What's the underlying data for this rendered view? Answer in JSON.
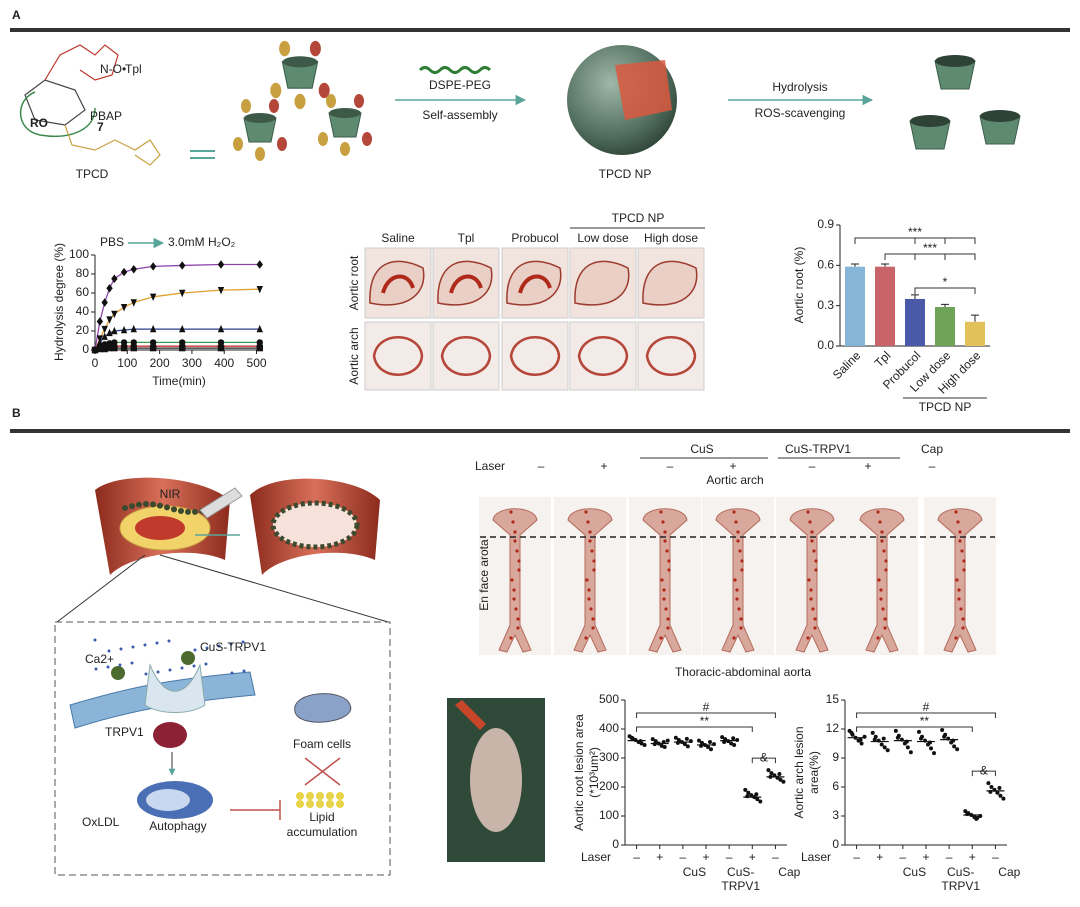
{
  "panel_a": {
    "label": "A",
    "scheme": {
      "tpl": "Tpl",
      "oxyl": "N-O•",
      "pbap": "PBAP",
      "ro": "RO",
      "n": "7",
      "tpcd": "TPCD",
      "reagent": "DSPE-PEG",
      "step1": "Self-assembly",
      "np": "TPCD NP",
      "step2a": "Hydrolysis",
      "step2b": "ROS-scavenging"
    },
    "histology": {
      "columns": [
        "Saline",
        "Tpl",
        "Probucol",
        "Low dose",
        "High dose"
      ],
      "group": "TPCD NP",
      "rows": [
        "Aortic root",
        "Aortic arch"
      ]
    }
  },
  "panel_b": {
    "label": "B",
    "scheme": {
      "nir": "NIR",
      "ca": "Ca2+",
      "cus": "CuS-TRPV1",
      "trpv1": "TRPV1",
      "oxldl": "OxLDL",
      "autophagy": "Autophagy",
      "foam": "Foam cells",
      "lipid": [
        "Lipid",
        "accumulation"
      ]
    },
    "aorta": {
      "laser_label": "Laser",
      "laser": [
        "–",
        "+",
        "–",
        "+",
        "–",
        "+",
        "–"
      ],
      "groups": [
        "CuS",
        "CuS-TRPV1",
        "Cap"
      ],
      "top_label": "Aortic arch",
      "side_label": "En face arota",
      "bottom_label": "Thoracic-abdominal aorta"
    }
  },
  "chart_data": [
    {
      "type": "line",
      "annotation": "PBS",
      "annotation_2": "3.0mM H₂O₂",
      "xlabel": "Time(min)",
      "ylabel": "Hydrolysis degree (%)",
      "x": [
        0,
        15,
        30,
        45,
        60,
        90,
        120,
        180,
        270,
        390,
        510
      ],
      "xlim": [
        0,
        520
      ],
      "xticks": [
        0,
        100,
        200,
        300,
        400,
        500
      ],
      "ylim": [
        0,
        100
      ],
      "yticks": [
        0,
        20,
        40,
        60,
        80,
        100
      ],
      "series": [
        {
          "color": "#8e44ad",
          "marker": "diamond",
          "values": [
            0,
            30,
            50,
            65,
            75,
            82,
            85,
            88,
            89,
            90,
            90
          ]
        },
        {
          "color": "#e0a030",
          "marker": "tri-down",
          "values": [
            0,
            12,
            22,
            32,
            38,
            45,
            50,
            56,
            60,
            63,
            64
          ]
        },
        {
          "color": "#2c3e8f",
          "marker": "tri-up",
          "values": [
            0,
            8,
            14,
            18,
            20,
            21,
            22,
            22,
            22,
            22,
            22
          ]
        },
        {
          "color": "#3c9a50",
          "marker": "circle",
          "values": [
            0,
            4,
            6,
            7,
            8,
            8,
            8,
            8,
            8,
            8,
            8
          ]
        },
        {
          "color": "#d03030",
          "marker": "circle",
          "values": [
            0,
            2,
            3,
            4,
            4,
            4,
            4,
            4,
            4,
            4,
            4
          ]
        },
        {
          "color": "#222222",
          "marker": "square",
          "values": [
            0,
            1,
            1,
            2,
            2,
            2,
            2,
            2,
            2,
            2,
            2
          ]
        }
      ]
    },
    {
      "type": "bar",
      "ylabel": "Aortic root (%)",
      "categories": [
        "Saline",
        "Tpl",
        "Probucol",
        "Low dose",
        "High dose"
      ],
      "values": [
        0.59,
        0.59,
        0.35,
        0.29,
        0.18
      ],
      "errors": [
        0.02,
        0.02,
        0.03,
        0.02,
        0.05
      ],
      "colors": [
        "#86b5d8",
        "#c9646b",
        "#4a5aa8",
        "#6fa356",
        "#e2c15a"
      ],
      "ylim": [
        0,
        0.9
      ],
      "yticks": [
        {
          "value": 0,
          "label": "0.0"
        },
        0.3,
        0.6,
        0.9
      ],
      "group_label": "TPCD NP",
      "significance": [
        "***",
        "***",
        "*"
      ]
    },
    {
      "type": "dot",
      "ylabel": [
        "Aortic root lesion area",
        "(*10³um²)"
      ],
      "laser_label": "Laser",
      "categories": [
        "–",
        "+",
        "–",
        "+",
        "–",
        "+",
        "–"
      ],
      "groups": [
        [
          "CuS"
        ],
        [
          "CuS-",
          "TRPV1"
        ],
        [
          "Cap"
        ]
      ],
      "values": [
        [
          375,
          368,
          362,
          355,
          350,
          345,
          370,
          358
        ],
        [
          365,
          358,
          350,
          342,
          338,
          360,
          348,
          355
        ],
        [
          370,
          362,
          355,
          348,
          340,
          358,
          352,
          366
        ],
        [
          360,
          352,
          345,
          338,
          330,
          348,
          342,
          355
        ],
        [
          372,
          365,
          358,
          350,
          345,
          362,
          355,
          368
        ],
        [
          190,
          180,
          172,
          165,
          158,
          150,
          168,
          175
        ],
        [
          258,
          248,
          240,
          232,
          225,
          218,
          235,
          245
        ]
      ],
      "means": [
        360,
        350,
        355,
        345,
        360,
        165,
        235
      ],
      "ylim": [
        0,
        500
      ],
      "yticks": [
        0,
        100,
        200,
        300,
        400,
        500
      ],
      "significance": [
        "#",
        "**",
        "&"
      ]
    },
    {
      "type": "dot",
      "ylabel": [
        "Aortic arch lesion",
        "area(%)"
      ],
      "laser_label": "Laser",
      "categories": [
        "–",
        "+",
        "–",
        "+",
        "–",
        "+",
        "–"
      ],
      "groups": [
        [
          "CuS"
        ],
        [
          "CuS-",
          "TRPV1"
        ],
        [
          "Cap"
        ]
      ],
      "values": [
        [
          11.8,
          11.4,
          11.1,
          10.8,
          10.5,
          11.2,
          11.6,
          10.9
        ],
        [
          11.6,
          11.2,
          10.8,
          10.4,
          10.1,
          9.8,
          10.9,
          11.0
        ],
        [
          11.8,
          11.3,
          10.9,
          10.5,
          10.1,
          9.6,
          11.1,
          10.7
        ],
        [
          11.7,
          11.2,
          10.8,
          10.4,
          10.0,
          9.5,
          11.0,
          10.6
        ],
        [
          11.9,
          11.4,
          11.0,
          10.6,
          10.2,
          9.9,
          11.2,
          10.8
        ],
        [
          3.5,
          3.3,
          3.1,
          2.9,
          2.8,
          3.0,
          3.2,
          2.7
        ],
        [
          6.4,
          6.0,
          5.7,
          5.4,
          5.1,
          4.8,
          5.5,
          5.9
        ]
      ],
      "means": [
        11.1,
        10.7,
        10.8,
        10.7,
        10.9,
        3.1,
        5.6
      ],
      "ylim": [
        0,
        15
      ],
      "yticks": [
        0,
        3,
        6,
        9,
        12,
        15
      ],
      "significance": [
        "#",
        "**",
        "&"
      ]
    }
  ]
}
